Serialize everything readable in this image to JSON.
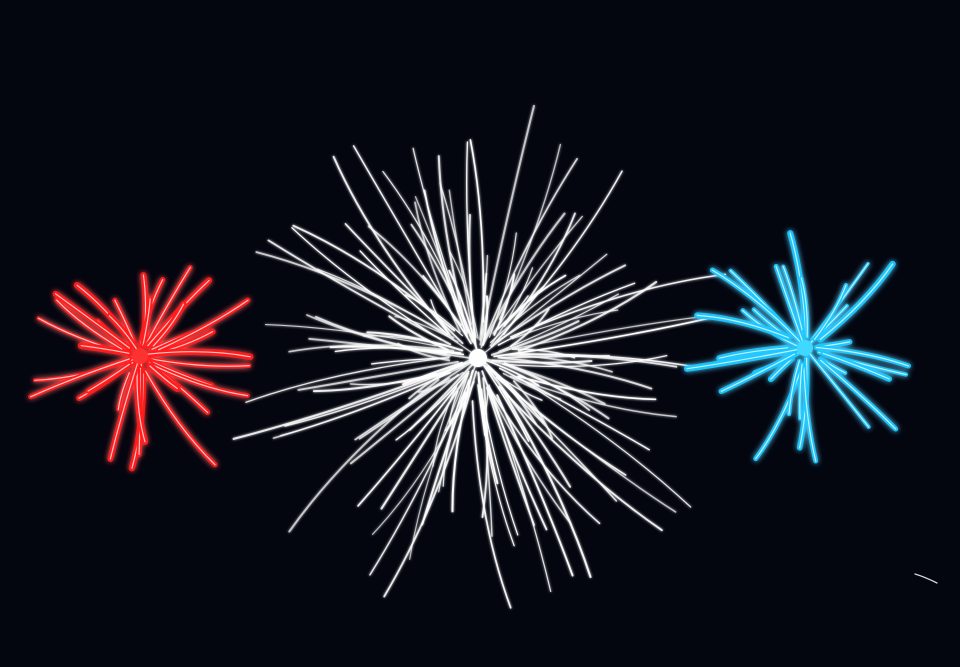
{
  "scene": {
    "sky_color": "#03050f",
    "fireworks": [
      {
        "id": "red-firework",
        "color": "#ff1a1a",
        "core": "#ff3030",
        "highlight": "#ffe0e0",
        "streaks": 34
      },
      {
        "id": "white-firework",
        "color": "#ffffff",
        "core": "#ffffff",
        "highlight": "#ffffff",
        "streaks": 140
      },
      {
        "id": "blue-firework",
        "color": "#19c8ff",
        "core": "#40d8ff",
        "highlight": "#e0f8ff",
        "streaks": 30
      }
    ]
  }
}
